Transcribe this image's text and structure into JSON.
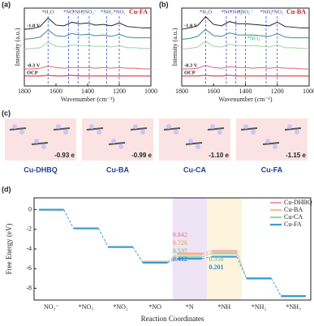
{
  "chart_data": [
    {
      "type": "line",
      "label": "(a)",
      "title": "Cu-FA",
      "title_color": "#d0202a",
      "x_label": "Wavenumber (cm⁻¹)",
      "y_label": "Intensity (a.u.)",
      "x": [
        1800,
        1750,
        1700,
        1650,
        1600,
        1550,
        1500,
        1450,
        1400,
        1350,
        1300,
        1250,
        1200,
        1150,
        1100,
        1050,
        1000
      ],
      "xlim": [
        1800,
        1000
      ],
      "xticks": [
        1800,
        1600,
        1400,
        1200,
        1000
      ],
      "ylim": [
        0,
        11
      ],
      "peaks": [
        {
          "label": "*H₂O",
          "x": 1650
        },
        {
          "label": "*NO",
          "x": 1520
        },
        {
          "label": "*NH₂",
          "x": 1460
        },
        {
          "label": "*NO₂⁻",
          "x": 1390
        },
        {
          "label": "*NH₂",
          "x": 1280
        },
        {
          "label": "*NO₂",
          "x": 1200
        }
      ],
      "series": [
        {
          "name": "-1.0 V",
          "color": "#222222",
          "values": [
            8,
            8.1,
            8.4,
            9.6,
            8.6,
            8.5,
            9.0,
            8.8,
            8.9,
            8.6,
            8.7,
            8.5,
            8.9,
            8.4,
            8.3,
            8.2,
            8.2
          ]
        },
        {
          "color": "#3a8f8f",
          "values": [
            6.6,
            6.7,
            6.9,
            7.9,
            7.1,
            7.0,
            7.4,
            7.2,
            7.3,
            7.1,
            7.2,
            7.0,
            7.3,
            6.9,
            6.8,
            6.8,
            6.8
          ]
        },
        {
          "color": "#9fd19f",
          "values": [
            5.2,
            5.3,
            5.4,
            6.2,
            5.6,
            5.5,
            5.8,
            5.7,
            5.7,
            5.6,
            5.6,
            5.5,
            5.7,
            5.4,
            5.4,
            5.3,
            5.3
          ]
        },
        {
          "name": "-0.3 V",
          "color": "#e06080",
          "values": [
            2.4,
            2.4,
            2.5,
            2.8,
            2.6,
            2.5,
            2.6,
            2.6,
            2.6,
            2.5,
            2.6,
            2.5,
            2.6,
            2.5,
            2.5,
            2.4,
            2.4
          ]
        },
        {
          "name": "OCP",
          "color": "#d02020",
          "values": [
            1.4,
            1.4,
            1.4,
            1.5,
            1.4,
            1.4,
            1.5,
            1.4,
            1.4,
            1.4,
            1.4,
            1.4,
            1.4,
            1.4,
            1.4,
            1.4,
            1.4
          ]
        }
      ]
    },
    {
      "type": "line",
      "label": "(b)",
      "title": "Cu-BA",
      "title_color": "#d0202a",
      "x_label": "Wavenumber (cm⁻¹)",
      "y_label": "Intensity (a.u.)",
      "x": [
        1800,
        1750,
        1700,
        1650,
        1600,
        1550,
        1500,
        1450,
        1400,
        1350,
        1300,
        1250,
        1200,
        1150,
        1100,
        1050,
        1000
      ],
      "xlim": [
        1800,
        1000
      ],
      "xticks": [
        1800,
        1600,
        1400,
        1200,
        1000
      ],
      "ylim": [
        0,
        11
      ],
      "peaks": [
        {
          "label": "*H₂O",
          "x": 1650
        },
        {
          "label": "*NO",
          "x": 1520
        },
        {
          "label": "*NH₂",
          "x": 1460
        },
        {
          "label": "*NO₂⁻",
          "x": 1400
        },
        {
          "label": "*NH₂",
          "x": 1270
        },
        {
          "label": "*NO₂",
          "x": 1200
        }
      ],
      "highlight": {
        "label": "*NO₃⁻",
        "x": 1340,
        "color": "#2bb673"
      },
      "series": [
        {
          "name": "-1.0 V",
          "color": "#222222",
          "values": [
            8,
            8.2,
            8.5,
            9.8,
            8.7,
            8.5,
            9.1,
            8.8,
            8.8,
            8.7,
            8.6,
            8.5,
            9.0,
            8.4,
            8.3,
            8.2,
            8.2
          ]
        },
        {
          "color": "#3a8f8f",
          "values": [
            6.6,
            6.7,
            7.0,
            8.0,
            7.1,
            7.0,
            7.5,
            7.2,
            7.2,
            7.2,
            7.1,
            7.0,
            7.4,
            6.9,
            6.8,
            6.8,
            6.8
          ]
        },
        {
          "color": "#9fd19f",
          "values": [
            5.2,
            5.3,
            5.5,
            6.3,
            5.6,
            5.5,
            5.9,
            5.7,
            5.7,
            5.7,
            5.6,
            5.5,
            5.8,
            5.4,
            5.4,
            5.3,
            5.3
          ]
        },
        {
          "name": "-0.3 V",
          "color": "#e06080",
          "values": [
            2.4,
            2.4,
            2.5,
            2.9,
            2.6,
            2.5,
            2.7,
            2.6,
            2.6,
            2.5,
            2.6,
            2.5,
            2.6,
            2.5,
            2.5,
            2.4,
            2.4
          ]
        },
        {
          "name": "OCP",
          "color": "#d02020",
          "values": [
            1.4,
            1.4,
            1.4,
            1.5,
            1.4,
            1.4,
            1.5,
            1.4,
            1.4,
            1.4,
            1.4,
            1.4,
            1.4,
            1.4,
            1.4,
            1.4,
            1.4
          ]
        }
      ]
    },
    {
      "type": "step",
      "label": "(d)",
      "x_label": "Reaction Coordinates",
      "y_label": "Free Energy (eV)",
      "categories": [
        "NO₃⁻",
        "*NO₃",
        "*NO₂",
        "*NO",
        "*N",
        "*NH",
        "*NH₂",
        "*NH₃"
      ],
      "ylim": [
        -9.2,
        1.2
      ],
      "yticks": [
        0,
        -2,
        -4,
        -6,
        -8
      ],
      "legend": "top-right",
      "series": [
        {
          "name": "Cu-DHBQ",
          "color": "#f4a0b8",
          "values": [
            0,
            -1.9,
            -3.8,
            -5.3,
            -4.46,
            -4.2,
            -7.0,
            -8.8
          ]
        },
        {
          "name": "Cu-BA",
          "color": "#f5c089",
          "values": [
            0,
            -1.9,
            -3.8,
            -5.3,
            -4.57,
            -4.4,
            -7.0,
            -8.8
          ]
        },
        {
          "name": "Cu-CA",
          "color": "#9fd3b0",
          "values": [
            0,
            -1.9,
            -3.8,
            -5.35,
            -4.81,
            -4.46,
            -7.0,
            -8.8
          ]
        },
        {
          "name": "Cu-FA",
          "color": "#3a9ad9",
          "values": [
            0,
            -1.9,
            -3.8,
            -5.4,
            -4.99,
            -4.79,
            -7.0,
            -8.8
          ]
        }
      ],
      "barriers_n": [
        {
          "label": "0.842",
          "color": "#f08fb0"
        },
        {
          "label": "0.726",
          "color": "#f0b070"
        },
        {
          "label": "0.537",
          "color": "#8fcaa0"
        },
        {
          "label": "0.412",
          "color": "#2a8ad0"
        }
      ],
      "barriers_nh": [
        {
          "label": "0.350",
          "color": "#8fcaa0"
        },
        {
          "label": "0.201",
          "color": "#2a8ad0"
        }
      ]
    }
  ],
  "panel_c": {
    "label": "(c)",
    "items": [
      {
        "name": "Cu-DHBQ",
        "charge": "-0.93 e"
      },
      {
        "name": "Cu-BA",
        "charge": "-0.99 e"
      },
      {
        "name": "Cu-CA",
        "charge": "-1.10 e"
      },
      {
        "name": "Cu-FA",
        "charge": "-1.15 e"
      }
    ]
  }
}
